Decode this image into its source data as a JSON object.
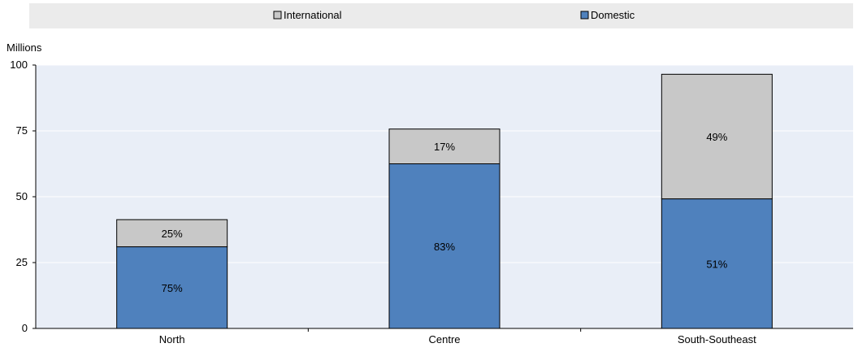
{
  "chart_data": {
    "type": "bar",
    "stacked": true,
    "categories": [
      "North",
      "Centre",
      "South-Southeast"
    ],
    "series": [
      {
        "name": "Domestic",
        "color": "#4f81bd",
        "values": [
          31,
          62.5,
          49.2
        ],
        "labels": [
          "75%",
          "83%",
          "51%"
        ]
      },
      {
        "name": "International",
        "color": "#c8c8c8",
        "values": [
          10.3,
          13.2,
          47.3
        ],
        "labels": [
          "25%",
          "17%",
          "49%"
        ]
      }
    ],
    "legend": {
      "position": "top",
      "items": [
        {
          "name": "International",
          "color": "#c8c8c8"
        },
        {
          "name": "Domestic",
          "color": "#4f81bd"
        }
      ]
    },
    "ylabel": "Millions",
    "ylim": [
      0,
      100
    ],
    "yticks": [
      0,
      25,
      50,
      75,
      100
    ],
    "grid": true,
    "plot_background": "#e9eef7",
    "grid_color": "#ffffff"
  }
}
